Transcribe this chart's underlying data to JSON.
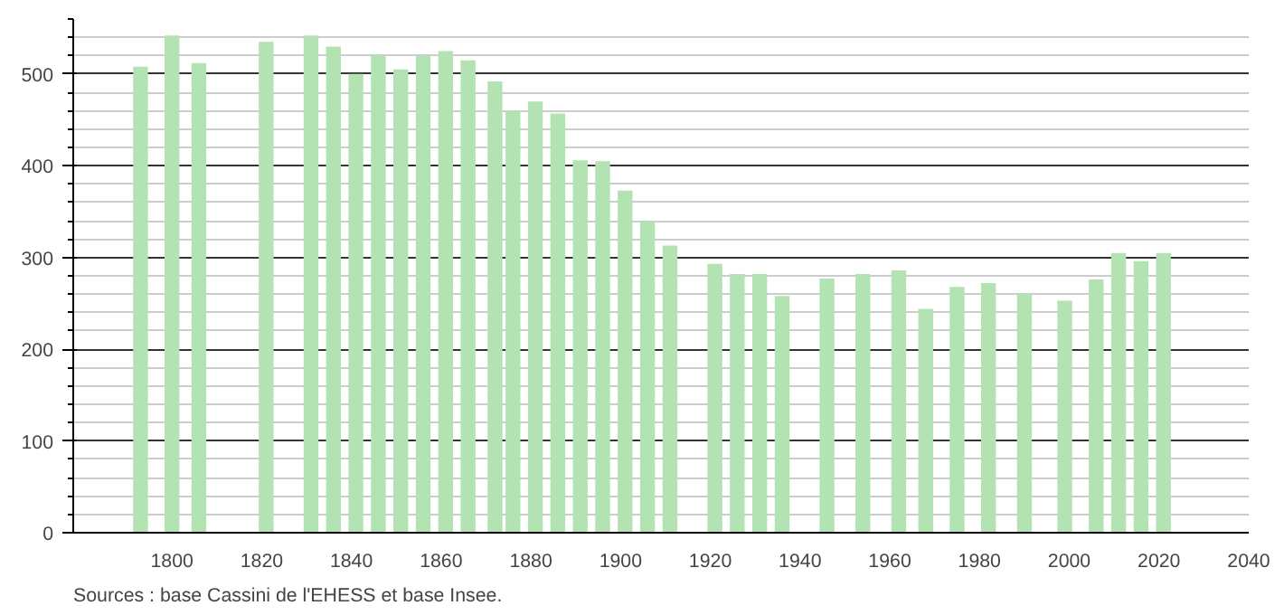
{
  "chart_data": {
    "type": "bar",
    "x": [
      1793,
      1800,
      1806,
      1821,
      1831,
      1836,
      1841,
      1846,
      1851,
      1856,
      1861,
      1866,
      1872,
      1876,
      1881,
      1886,
      1891,
      1896,
      1901,
      1906,
      1911,
      1921,
      1926,
      1931,
      1936,
      1946,
      1954,
      1962,
      1968,
      1975,
      1982,
      1990,
      1999,
      2006,
      2011,
      2016,
      2021
    ],
    "values": [
      508,
      542,
      512,
      535,
      542,
      530,
      500,
      520,
      505,
      520,
      525,
      515,
      492,
      460,
      470,
      457,
      406,
      405,
      373,
      340,
      313,
      293,
      282,
      282,
      258,
      277,
      282,
      286,
      244,
      268,
      272,
      261,
      253,
      276,
      305,
      296,
      305
    ],
    "color": "#b3e2b3",
    "xlim": [
      1778,
      2040
    ],
    "xticks": [
      1800,
      1820,
      1840,
      1860,
      1880,
      1900,
      1920,
      1940,
      1960,
      1980,
      2000,
      2020,
      2040
    ],
    "ylim": [
      0,
      560
    ],
    "yticks": [
      0,
      100,
      200,
      300,
      400,
      500
    ],
    "grid": "y",
    "annotations": [
      "Sources : base Cassini de l'EHESS et base Insee."
    ]
  }
}
